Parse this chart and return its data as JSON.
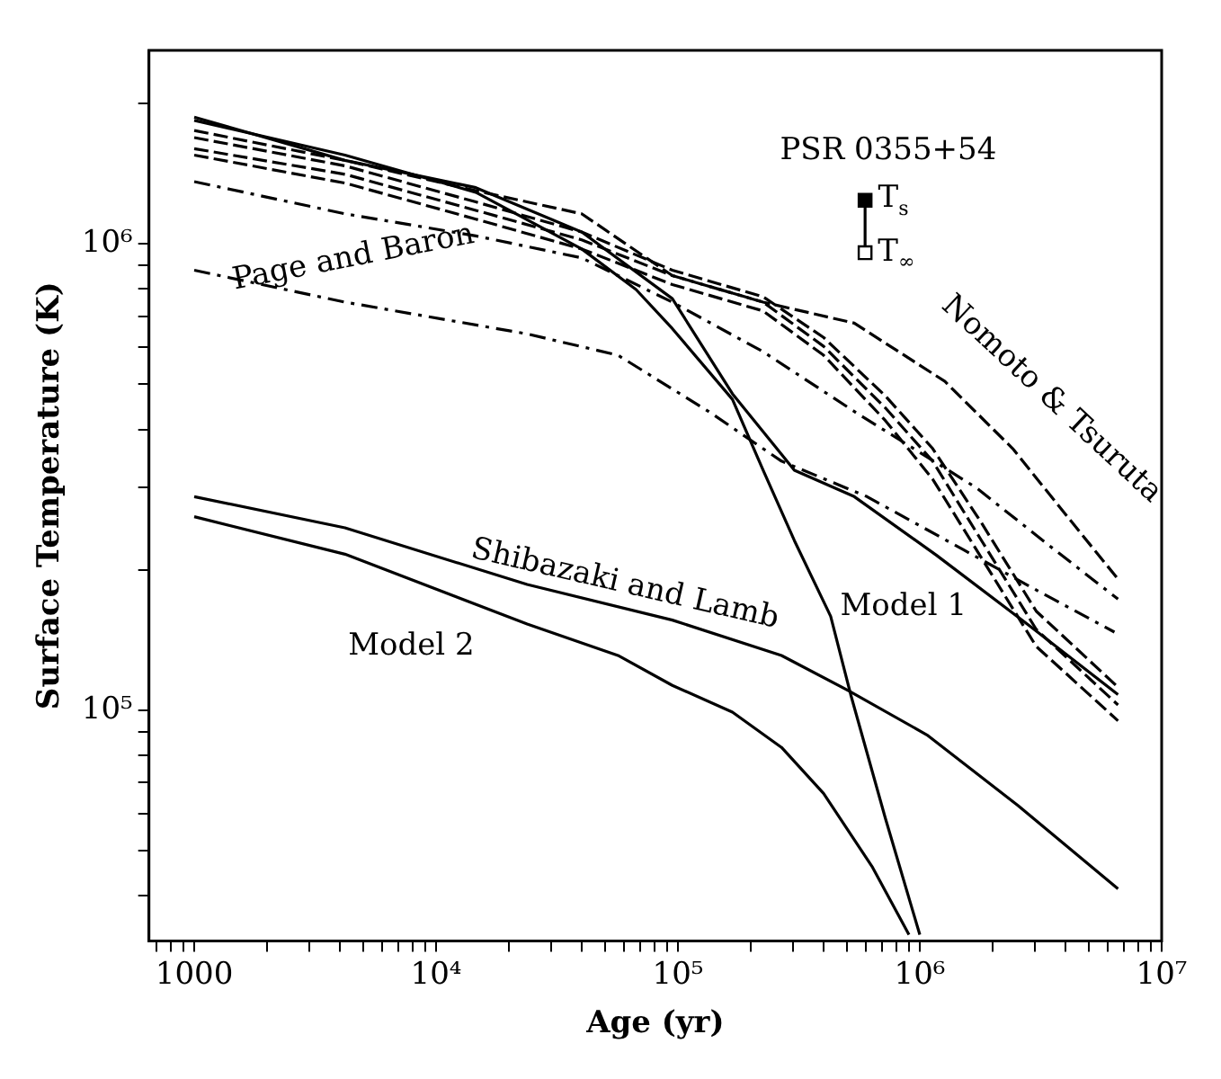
{
  "chart_data": {
    "type": "line",
    "xlabel": "Age (yr)",
    "ylabel": "Surface Temperature (K)",
    "log": "xy",
    "grid": false,
    "legend": false,
    "marker": "none",
    "xlim": [
      650,
      10000000
    ],
    "ylim": [
      32000,
      2600000
    ],
    "xticks": [
      {
        "value": 700,
        "label": null
      },
      {
        "value": 800,
        "label": null
      },
      {
        "value": 900,
        "label": null
      },
      1000,
      {
        "value": 2000,
        "label": null
      },
      {
        "value": 3000,
        "label": null
      },
      {
        "value": 4000,
        "label": null
      },
      {
        "value": 5000,
        "label": null
      },
      {
        "value": 6000,
        "label": null
      },
      {
        "value": 7000,
        "label": null
      },
      {
        "value": 8000,
        "label": null
      },
      {
        "value": 9000,
        "label": null
      },
      {
        "value": 10000,
        "label": "10⁴"
      },
      {
        "value": 20000,
        "label": null
      },
      {
        "value": 30000,
        "label": null
      },
      {
        "value": 40000,
        "label": null
      },
      {
        "value": 50000,
        "label": null
      },
      {
        "value": 60000,
        "label": null
      },
      {
        "value": 70000,
        "label": null
      },
      {
        "value": 80000,
        "label": null
      },
      {
        "value": 90000,
        "label": null
      },
      {
        "value": 100000,
        "label": "10⁵"
      },
      {
        "value": 200000,
        "label": null
      },
      {
        "value": 300000,
        "label": null
      },
      {
        "value": 400000,
        "label": null
      },
      {
        "value": 500000,
        "label": null
      },
      {
        "value": 600000,
        "label": null
      },
      {
        "value": 700000,
        "label": null
      },
      {
        "value": 800000,
        "label": null
      },
      {
        "value": 900000,
        "label": null
      },
      {
        "value": 1000000,
        "label": "10⁶"
      },
      {
        "value": 2000000,
        "label": null
      },
      {
        "value": 3000000,
        "label": null
      },
      {
        "value": 4000000,
        "label": null
      },
      {
        "value": 5000000,
        "label": null
      },
      {
        "value": 6000000,
        "label": null
      },
      {
        "value": 7000000,
        "label": null
      },
      {
        "value": 8000000,
        "label": null
      },
      {
        "value": 9000000,
        "label": null
      },
      {
        "value": 10000000,
        "label": "10⁷"
      }
    ],
    "yticks": [
      {
        "value": 40000,
        "label": null
      },
      {
        "value": 50000,
        "label": null
      },
      {
        "value": 60000,
        "label": null
      },
      {
        "value": 70000,
        "label": null
      },
      {
        "value": 80000,
        "label": null
      },
      {
        "value": 90000,
        "label": null
      },
      {
        "value": 100000,
        "label": "10⁵"
      },
      {
        "value": 200000,
        "label": null
      },
      {
        "value": 300000,
        "label": null
      },
      {
        "value": 400000,
        "label": null
      },
      {
        "value": 500000,
        "label": null
      },
      {
        "value": 600000,
        "label": null
      },
      {
        "value": 700000,
        "label": null
      },
      {
        "value": 800000,
        "label": null
      },
      {
        "value": 900000,
        "label": null
      },
      {
        "value": 1000000,
        "label": "10⁶"
      },
      {
        "value": 2000000,
        "label": null
      }
    ],
    "series": [
      {
        "color": "#000000",
        "line_style": "solid",
        "x": [
          1000,
          4200,
          14600,
          40000,
          94800,
          168000,
          303000,
          536000,
          1170000,
          2780000,
          6600000
        ],
        "values": [
          1870000,
          1510000,
          1320000,
          1060000,
          763000,
          477000,
          327000,
          287000,
          215000,
          153000,
          108000
        ]
      },
      {
        "color": "#000000",
        "line_style": "solid",
        "x": [
          1000,
          4200,
          14600,
          40000,
          67100,
          94800,
          168000,
          225000,
          303000,
          428000,
          518000,
          720000,
          1000000
        ],
        "values": [
          1840000,
          1550000,
          1290000,
          975000,
          798000,
          658000,
          464000,
          327000,
          231000,
          159000,
          108000,
          58700,
          33000
        ]
      },
      {
        "color": "#000000",
        "line_style": "solid",
        "x": [
          1000,
          4200,
          23800,
          94800,
          268000,
          509000,
          1070000,
          2550000,
          6600000
        ],
        "values": [
          287000,
          246000,
          186000,
          156000,
          131000,
          110000,
          88500,
          62400,
          41400
        ]
      },
      {
        "color": "#000000",
        "line_style": "solid",
        "x": [
          1000,
          4200,
          23800,
          56500,
          94800,
          168000,
          268000,
          400000,
          638000,
          902000
        ],
        "values": [
          260000,
          216000,
          153000,
          131000,
          113000,
          99000,
          83200,
          66300,
          46000,
          33000
        ]
      },
      {
        "color": "#000000",
        "line_style": "dashdot",
        "x": [
          1000,
          4200,
          14600,
          40000,
          94800,
          225000,
          536000,
          1710000,
          3600000,
          6600000
        ],
        "values": [
          1360000,
          1160000,
          1040000,
          933000,
          750000,
          587000,
          437000,
          300000,
          221000,
          173000
        ]
      },
      {
        "color": "#000000",
        "line_style": "dashdot",
        "x": [
          1000,
          4200,
          23800,
          56500,
          134000,
          268000,
          605000,
          1510000,
          3030000,
          6380000
        ],
        "values": [
          878000,
          750000,
          641000,
          577000,
          437000,
          342000,
          287000,
          221000,
          181000,
          147000
        ]
      },
      {
        "color": "#000000",
        "line_style": "dashed",
        "x": [
          1000,
          4200,
          14600,
          40000,
          94800,
          225000,
          536000,
          1270000,
          2420000,
          4280000,
          6600000
        ],
        "values": [
          1750000,
          1510000,
          1300000,
          1160000,
          855000,
          750000,
          676000,
          507000,
          364000,
          252000,
          191000
        ]
      },
      {
        "color": "#000000",
        "line_style": "dashed",
        "x": [
          1000,
          4200,
          14600,
          40000,
          94800,
          225000,
          400000,
          720000,
          1130000,
          1800000,
          3030000,
          6600000
        ],
        "values": [
          1690000,
          1470000,
          1230000,
          1060000,
          878000,
          770000,
          630000,
          472000,
          364000,
          252000,
          163000,
          112000
        ]
      },
      {
        "color": "#000000",
        "line_style": "dashed",
        "x": [
          1000,
          4200,
          14600,
          40000,
          94800,
          225000,
          400000,
          720000,
          1130000,
          1800000,
          3030000,
          6600000
        ],
        "values": [
          1600000,
          1410000,
          1180000,
          1020000,
          855000,
          750000,
          603000,
          445000,
          342000,
          231000,
          149000,
          102600
        ]
      },
      {
        "color": "#000000",
        "line_style": "dashed",
        "x": [
          1000,
          4200,
          14600,
          40000,
          94800,
          225000,
          400000,
          720000,
          1130000,
          1800000,
          3030000,
          6600000
        ],
        "values": [
          1550000,
          1350000,
          1130000,
          975000,
          818000,
          718000,
          577000,
          418000,
          313000,
          212000,
          137000,
          94900
        ]
      },
      {
        "color": "#000000",
        "line_style": "solid",
        "marker": "square",
        "colors": [
          "#000000",
          "#ffffff"
        ],
        "x": [
          594000,
          594000
        ],
        "values": [
          1240000,
          957000
        ]
      }
    ],
    "annotations": [
      "PSR 0355+54",
      "T$_{s}$",
      "T$_{∞}$",
      "Page and Baron",
      "Nomoto & Tsuruta",
      "Shibazaki and Lamb",
      "Model 1",
      "Model 2"
    ]
  }
}
